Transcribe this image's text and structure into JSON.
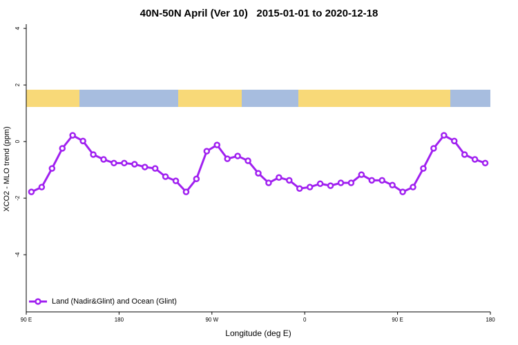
{
  "chart_data": {
    "type": "line",
    "title": "40N-50N April (Ver 10)   2015-01-01 to 2020-12-18",
    "x_label": "Longitude (deg E)",
    "y_label": "XCO2 - MLO trend (ppm)",
    "x": [
      95,
      105,
      115,
      125,
      135,
      145,
      155,
      165,
      175,
      185,
      195,
      205,
      215,
      225,
      235,
      245,
      255,
      265,
      275,
      285,
      295,
      305,
      315,
      325,
      335,
      345,
      355,
      365,
      375,
      385,
      395,
      405,
      415,
      425,
      435,
      445,
      455,
      465,
      475,
      485,
      495,
      505,
      515,
      525,
      535
    ],
    "series": [
      {
        "name": "Land (Nadir&Glint) and Ocean (Glint)",
        "color": "#a020f0",
        "values": [
          -1.78,
          -1.61,
          -0.95,
          -0.24,
          0.22,
          0.02,
          -0.46,
          -0.63,
          -0.76,
          -0.76,
          -0.8,
          -0.9,
          -0.95,
          -1.24,
          -1.39,
          -1.78,
          -1.32,
          -0.34,
          -0.12,
          -0.61,
          -0.51,
          -0.68,
          -1.12,
          -1.46,
          -1.27,
          -1.37,
          -1.66,
          -1.61,
          -1.49,
          -1.56,
          -1.46,
          -1.46,
          -1.17,
          -1.37,
          -1.37,
          -1.54,
          -1.78,
          -1.61,
          -0.95,
          -0.24,
          0.22,
          0.02,
          -0.46,
          -0.63,
          -0.76
        ]
      }
    ],
    "xlim": [
      90,
      540
    ],
    "xticks": [
      {
        "value": 90,
        "label": "90 E"
      },
      180,
      {
        "value": 270,
        "label": "90 W"
      },
      {
        "value": 360,
        "label": "0"
      },
      {
        "value": 450,
        "label": "90 E"
      },
      {
        "value": 540,
        "label": "180"
      }
    ],
    "ylim": [
      -6.02,
      4.15
    ],
    "yticks": [
      -4,
      -2,
      0,
      2,
      4
    ],
    "legend": "bottom-left"
  }
}
